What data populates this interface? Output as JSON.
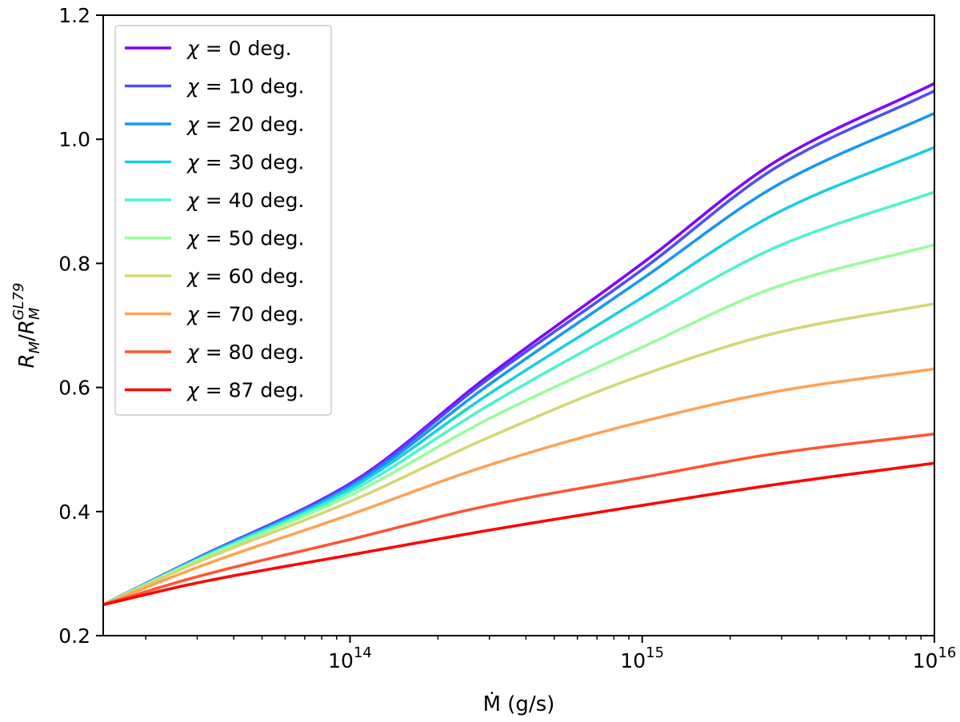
{
  "chart_data": {
    "type": "line",
    "title": "",
    "xlabel": "Ṁ (g/s)",
    "ylabel": "R_M/R_M^GL79",
    "ylabel_parts": {
      "base": "R",
      "sub": "M",
      "sep": "/",
      "base2": "R",
      "sub2": "M",
      "sup2": "GL79"
    },
    "xscale": "log",
    "xlim": [
      14300000000000.0,
      1e+16
    ],
    "ylim": [
      0.2,
      1.2
    ],
    "grid": false,
    "legend_location": "upper-left",
    "x_major_ticks": [
      {
        "value": 100000000000000.0,
        "base": "10",
        "exp": "14"
      },
      {
        "value": 1000000000000000.0,
        "base": "10",
        "exp": "15"
      },
      {
        "value": 1e+16,
        "base": "10",
        "exp": "16"
      }
    ],
    "y_ticks": [
      {
        "value": 0.2,
        "label": "0.2"
      },
      {
        "value": 0.4,
        "label": "0.4"
      },
      {
        "value": 0.6,
        "label": "0.6"
      },
      {
        "value": 0.8,
        "label": "0.8"
      },
      {
        "value": 1.0,
        "label": "1.0"
      },
      {
        "value": 1.2,
        "label": "1.2"
      }
    ],
    "x": [
      14300000000000.0,
      30000000000000.0,
      100000000000000.0,
      300000000000000.0,
      1000000000000000.0,
      3000000000000000.0,
      1e+16
    ],
    "series": [
      {
        "name": "χ = 0 deg.",
        "symbol": "χ",
        "label_rest": "= 0 deg.",
        "color": "#8000ff",
        "values": [
          0.25,
          0.325,
          0.445,
          0.62,
          0.8,
          0.97,
          1.09
        ]
      },
      {
        "name": "χ = 10 deg.",
        "symbol": "χ",
        "label_rest": "= 10 deg.",
        "color": "#4d4dfc",
        "values": [
          0.25,
          0.325,
          0.443,
          0.615,
          0.79,
          0.96,
          1.078
        ]
      },
      {
        "name": "χ = 20 deg.",
        "symbol": "χ",
        "label_rest": "= 20 deg.",
        "color": "#1996f3",
        "values": [
          0.25,
          0.324,
          0.44,
          0.605,
          0.775,
          0.93,
          1.042
        ]
      },
      {
        "name": "χ = 30 deg.",
        "symbol": "χ",
        "label_rest": "= 30 deg.",
        "color": "#1acee3",
        "values": [
          0.25,
          0.323,
          0.437,
          0.59,
          0.745,
          0.885,
          0.987
        ]
      },
      {
        "name": "χ = 40 deg.",
        "symbol": "χ",
        "label_rest": "= 40 deg.",
        "color": "#4df3ce",
        "values": [
          0.25,
          0.322,
          0.432,
          0.572,
          0.71,
          0.83,
          0.915
        ]
      },
      {
        "name": "χ = 50 deg.",
        "symbol": "χ",
        "label_rest": "= 50 deg.",
        "color": "#99fc9e",
        "values": [
          0.25,
          0.321,
          0.426,
          0.55,
          0.665,
          0.765,
          0.83
        ]
      },
      {
        "name": "χ = 60 deg.",
        "symbol": "χ",
        "label_rest": "= 60 deg.",
        "color": "#d2d775",
        "values": [
          0.25,
          0.318,
          0.416,
          0.52,
          0.62,
          0.69,
          0.735
        ]
      },
      {
        "name": "χ = 70 deg.",
        "symbol": "χ",
        "label_rest": "= 70 deg.",
        "color": "#ffa256",
        "values": [
          0.25,
          0.31,
          0.395,
          0.475,
          0.545,
          0.595,
          0.63
        ]
      },
      {
        "name": "χ = 80 deg.",
        "symbol": "χ",
        "label_rest": "= 80 deg.",
        "color": "#ff5533",
        "values": [
          0.25,
          0.295,
          0.355,
          0.41,
          0.455,
          0.495,
          0.525
        ]
      },
      {
        "name": "χ = 87 deg.",
        "symbol": "χ",
        "label_rest": "= 87 deg.",
        "color": "#ff0000",
        "values": [
          0.25,
          0.285,
          0.33,
          0.37,
          0.41,
          0.445,
          0.478
        ]
      }
    ]
  }
}
